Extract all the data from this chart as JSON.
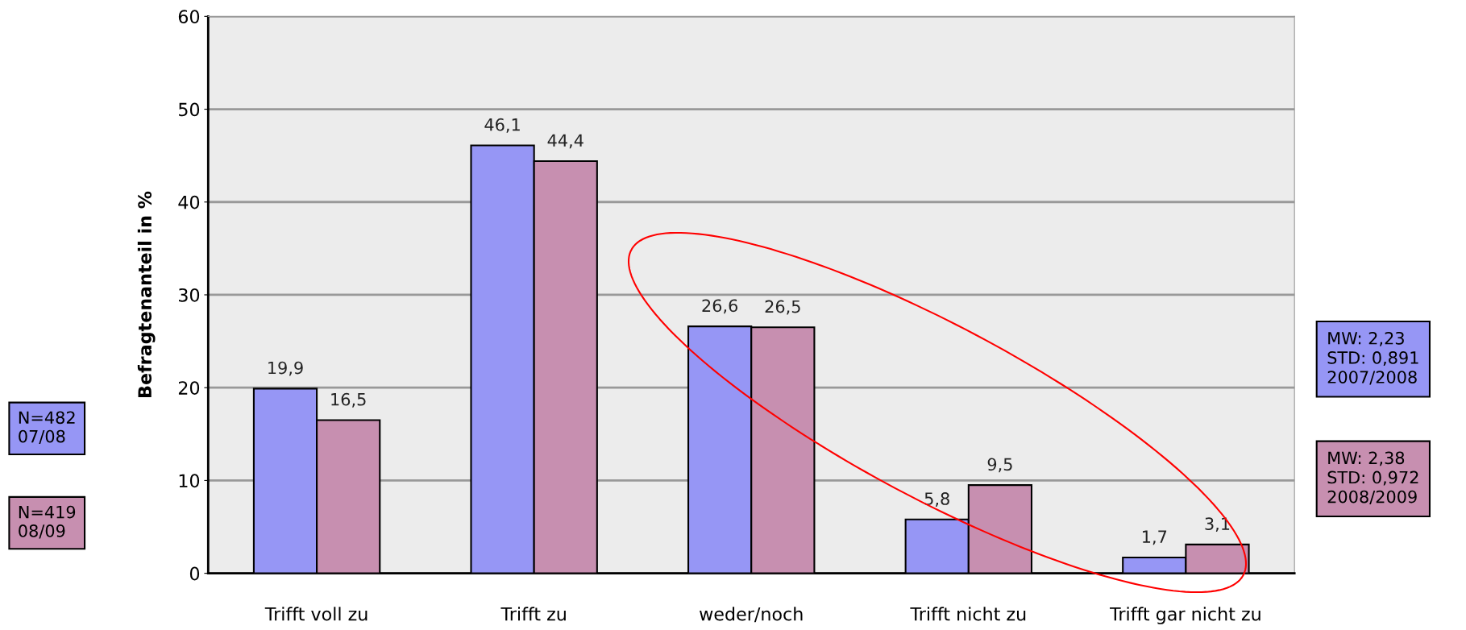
{
  "chart_data": {
    "type": "bar",
    "ylabel": "Befragtenanteil in %",
    "categories": [
      "Trifft voll zu",
      "Trifft zu",
      "weder/noch",
      "Trifft nicht zu",
      "Trifft gar nicht zu"
    ],
    "series": [
      {
        "name": "N=482\n07/08",
        "color": "#9696f5",
        "values": [
          19.9,
          46.1,
          26.6,
          5.8,
          1.7
        ],
        "value_labels": [
          "19,9",
          "46,1",
          "26,6",
          "5,8",
          "1,7"
        ]
      },
      {
        "name": "N=419\n08/09",
        "color": "#c78fb0",
        "values": [
          16.5,
          44.4,
          26.5,
          9.5,
          3.1
        ],
        "value_labels": [
          "16,5",
          "44,4",
          "26,5",
          "9,5",
          "3,1"
        ]
      }
    ],
    "ylim": [
      0,
      60
    ],
    "yticks": [
      0,
      10,
      20,
      30,
      40,
      50,
      60
    ],
    "grid": "y",
    "legend": "left",
    "annotations": [
      "MW: 2,23\nSTD: 0,891\n2007/2008",
      "MW: 2,38\nSTD: 0,972\n2008/2009"
    ]
  }
}
